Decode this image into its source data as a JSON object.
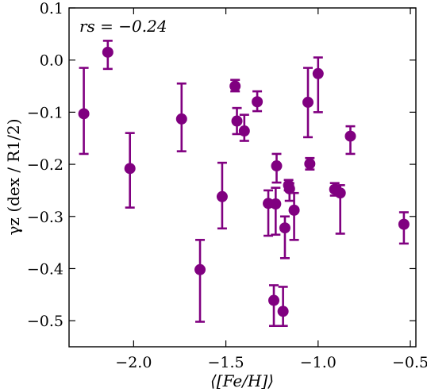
{
  "chart_data": {
    "type": "scatter",
    "xlabel": "⟨[Fe/H]⟩",
    "ylabel": "γz (dex / R1/2)",
    "annotation": "rs = −0.24",
    "xlim": [
      -2.35,
      -0.47
    ],
    "ylim": [
      -0.55,
      0.1
    ],
    "xticks": [
      -2.0,
      -1.5,
      -1.0,
      -0.5
    ],
    "xtick_labels": [
      "−2.0",
      "−1.5",
      "−1.0",
      "−0.5"
    ],
    "yticks": [
      0.1,
      0.0,
      -0.1,
      -0.2,
      -0.3,
      -0.4,
      -0.5
    ],
    "ytick_labels": [
      "0.1",
      "0.0",
      "−0.1",
      "−0.2",
      "−0.3",
      "−0.4",
      "−0.5"
    ],
    "grid": false,
    "marker_color": "#800080",
    "points": [
      {
        "x": -2.27,
        "y": -0.103,
        "ylo": -0.18,
        "yhi": -0.015
      },
      {
        "x": -2.14,
        "y": 0.015,
        "ylo": -0.017,
        "yhi": 0.037
      },
      {
        "x": -2.02,
        "y": -0.208,
        "ylo": -0.283,
        "yhi": -0.14
      },
      {
        "x": -1.74,
        "y": -0.113,
        "ylo": -0.175,
        "yhi": -0.045
      },
      {
        "x": -1.64,
        "y": -0.402,
        "ylo": -0.502,
        "yhi": -0.345
      },
      {
        "x": -1.52,
        "y": -0.262,
        "ylo": -0.323,
        "yhi": -0.197
      },
      {
        "x": -1.45,
        "y": -0.05,
        "ylo": -0.06,
        "yhi": -0.038
      },
      {
        "x": -1.44,
        "y": -0.117,
        "ylo": -0.142,
        "yhi": -0.092
      },
      {
        "x": -1.4,
        "y": -0.136,
        "ylo": -0.155,
        "yhi": -0.105
      },
      {
        "x": -1.33,
        "y": -0.08,
        "ylo": -0.098,
        "yhi": -0.06
      },
      {
        "x": -1.27,
        "y": -0.275,
        "ylo": -0.337,
        "yhi": -0.25
      },
      {
        "x": -1.24,
        "y": -0.461,
        "ylo": -0.51,
        "yhi": -0.432
      },
      {
        "x": -1.23,
        "y": -0.276,
        "ylo": -0.335,
        "yhi": -0.245
      },
      {
        "x": -1.225,
        "y": -0.203,
        "ylo": -0.235,
        "yhi": -0.18
      },
      {
        "x": -1.19,
        "y": -0.482,
        "ylo": -0.51,
        "yhi": -0.435
      },
      {
        "x": -1.18,
        "y": -0.322,
        "ylo": -0.38,
        "yhi": -0.3
      },
      {
        "x": -1.16,
        "y": -0.24,
        "ylo": -0.25,
        "yhi": -0.23
      },
      {
        "x": -1.155,
        "y": -0.247,
        "ylo": -0.27,
        "yhi": -0.236
      },
      {
        "x": -1.13,
        "y": -0.288,
        "ylo": -0.345,
        "yhi": -0.255
      },
      {
        "x": -1.055,
        "y": -0.081,
        "ylo": -0.148,
        "yhi": -0.015
      },
      {
        "x": -1.045,
        "y": -0.199,
        "ylo": -0.21,
        "yhi": -0.188
      },
      {
        "x": -1.0,
        "y": -0.026,
        "ylo": -0.1,
        "yhi": 0.005
      },
      {
        "x": -0.91,
        "y": -0.248,
        "ylo": -0.26,
        "yhi": -0.236
      },
      {
        "x": -0.88,
        "y": -0.255,
        "ylo": -0.333,
        "yhi": -0.24
      },
      {
        "x": -0.825,
        "y": -0.146,
        "ylo": -0.18,
        "yhi": -0.127
      },
      {
        "x": -0.535,
        "y": -0.315,
        "ylo": -0.352,
        "yhi": -0.292
      }
    ]
  }
}
